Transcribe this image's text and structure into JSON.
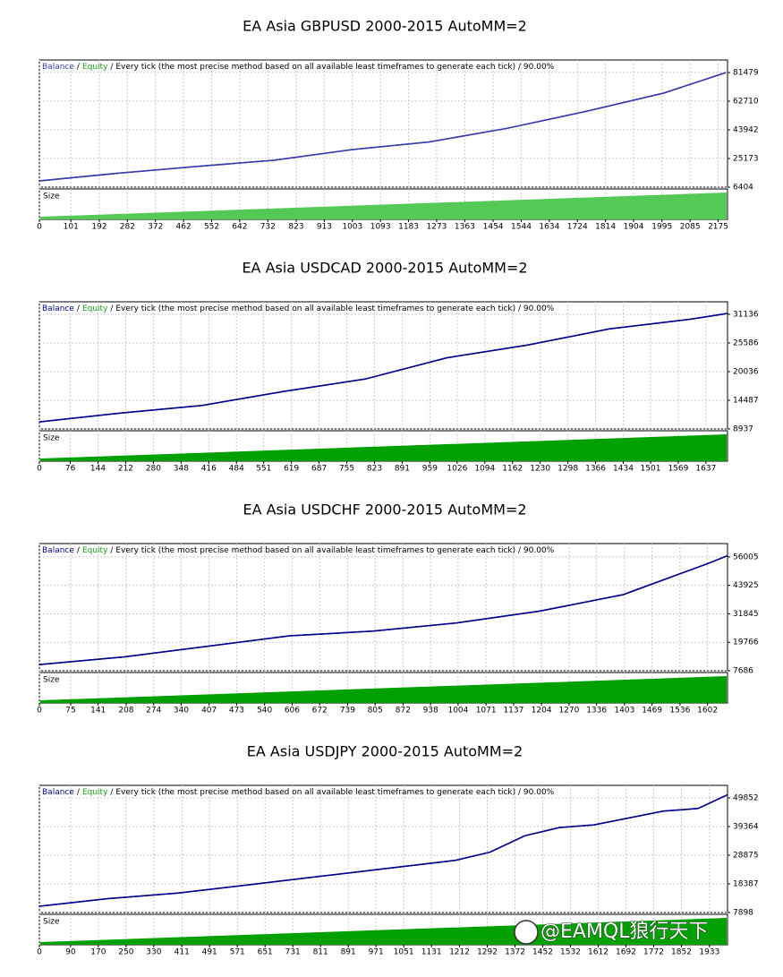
{
  "chart_data": [
    {
      "type": "line",
      "title": "EA Asia GBPUSD 2000-2015 AutoMM=2",
      "legend_separator": "/",
      "header_text": "/ Every tick (the most precise method based on all available least timeframes to generate each tick) / 90.00%",
      "panel_label": "Size",
      "size_color": "#55c955",
      "x": [
        0,
        250,
        500,
        750,
        1000,
        1250,
        1500,
        1750,
        2000,
        2200
      ],
      "series": [
        {
          "name": "Balance",
          "color": "#3a3aaa",
          "values": [
            10500,
            15500,
            19900,
            24000,
            31000,
            36000,
            45000,
            56000,
            68000,
            81500
          ]
        },
        {
          "name": "Equity",
          "color": "#3a3aaa",
          "values": [
            10500,
            15500,
            19900,
            24000,
            31000,
            36000,
            45000,
            56000,
            68000,
            81500
          ]
        }
      ],
      "xlim": [
        0,
        2205
      ],
      "xticks": [
        0,
        101,
        192,
        282,
        372,
        462,
        552,
        642,
        732,
        823,
        913,
        1003,
        1093,
        1183,
        1273,
        1363,
        1454,
        1544,
        1634,
        1724,
        1814,
        1904,
        1995,
        2085,
        2175
      ],
      "ylim": [
        6404,
        89700
      ],
      "yticks": [
        6404,
        25173,
        43942,
        62710,
        81479
      ],
      "grid": true
    },
    {
      "type": "line",
      "title": "EA Asia USDCAD 2000-2015 AutoMM=2",
      "legend_separator": "/",
      "header_text": "/ Every tick (the most precise method based on all available least timeframes to generate each tick) / 90.00%",
      "panel_label": "Size",
      "size_color": "#00a000",
      "x": [
        0,
        200,
        400,
        600,
        800,
        1000,
        1200,
        1400,
        1600,
        1690
      ],
      "series": [
        {
          "name": "Balance",
          "color": "#00008b",
          "values": [
            10300,
            12000,
            13500,
            16200,
            18600,
            22700,
            25200,
            28300,
            30200,
            31300
          ]
        },
        {
          "name": "Equity",
          "color": "#00008b",
          "values": [
            10300,
            12000,
            13500,
            16200,
            18600,
            22700,
            25200,
            28300,
            30200,
            31300
          ]
        }
      ],
      "xlim": [
        0,
        1690
      ],
      "xticks": [
        0,
        76,
        144,
        212,
        280,
        348,
        416,
        484,
        551,
        619,
        687,
        755,
        823,
        891,
        959,
        1026,
        1094,
        1162,
        1230,
        1298,
        1366,
        1434,
        1501,
        1569,
        1637
      ],
      "ylim": [
        8937,
        33560
      ],
      "yticks": [
        8937,
        14487,
        20036,
        25586,
        31136
      ],
      "grid": true
    },
    {
      "type": "line",
      "title": "EA Asia USDCHF 2000-2015 AutoMM=2",
      "legend_separator": "/",
      "header_text": "/ Every tick (the most precise method based on all available least timeframes to generate each tick) / 90.00%",
      "panel_label": "Size",
      "size_color": "#00a000",
      "x": [
        0,
        200,
        400,
        600,
        800,
        1000,
        1200,
        1400,
        1600,
        1650
      ],
      "series": [
        {
          "name": "Balance",
          "color": "#00008b",
          "values": [
            10300,
            13500,
            18000,
            22500,
            24500,
            28000,
            33000,
            40000,
            53000,
            56500
          ]
        },
        {
          "name": "Equity",
          "color": "#00008b",
          "values": [
            10300,
            13500,
            18000,
            22500,
            24500,
            28000,
            33000,
            40000,
            53000,
            56500
          ]
        }
      ],
      "xlim": [
        0,
        1650
      ],
      "xticks": [
        0,
        75,
        141,
        208,
        274,
        340,
        407,
        473,
        540,
        606,
        672,
        739,
        805,
        872,
        938,
        1004,
        1071,
        1137,
        1204,
        1270,
        1336,
        1403,
        1469,
        1536,
        1602
      ],
      "ylim": [
        7686,
        61660
      ],
      "yticks": [
        7686,
        19766,
        31845,
        43925,
        56005
      ],
      "grid": true
    },
    {
      "type": "line",
      "title": "EA Asia USDJPY 2000-2015 AutoMM=2",
      "legend_separator": "/",
      "header_text": "/ Every tick (the most precise method based on all available least timeframes to generate each tick) / 90.00%",
      "panel_label": "Size",
      "size_color": "#00a000",
      "x": [
        0,
        200,
        400,
        600,
        800,
        1000,
        1200,
        1300,
        1400,
        1500,
        1600,
        1800,
        1900,
        1985
      ],
      "series": [
        {
          "name": "Balance",
          "color": "#00008b",
          "values": [
            10200,
            13000,
            15000,
            18000,
            21000,
            24000,
            27000,
            30000,
            36000,
            39000,
            40000,
            45000,
            46000,
            51000
          ]
        },
        {
          "name": "Equity",
          "color": "#00008b",
          "values": [
            10200,
            13000,
            15000,
            18000,
            21000,
            24000,
            27000,
            30000,
            36000,
            39000,
            40000,
            45000,
            46000,
            51000
          ]
        }
      ],
      "xlim": [
        0,
        1985
      ],
      "xticks": [
        0,
        90,
        170,
        250,
        330,
        411,
        491,
        571,
        651,
        731,
        811,
        891,
        971,
        1051,
        1131,
        1212,
        1292,
        1372,
        1452,
        1532,
        1612,
        1692,
        1772,
        1852,
        1933
      ],
      "ylim": [
        7898,
        54440
      ],
      "yticks": [
        7898,
        18387,
        28875,
        39364,
        49852
      ],
      "grid": true
    }
  ],
  "watermark": "@EAMQL狼行天下"
}
